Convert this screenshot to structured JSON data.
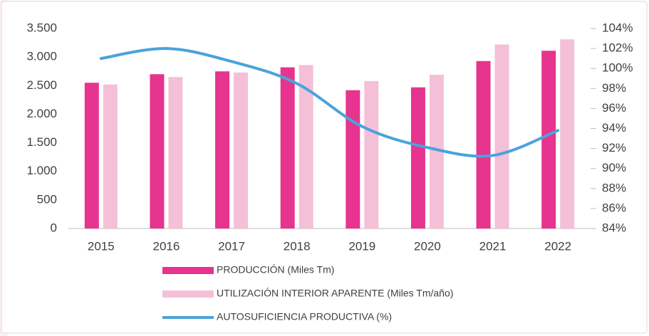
{
  "chart_data": {
    "type": "bar",
    "categories": [
      "2015",
      "2016",
      "2017",
      "2018",
      "2019",
      "2020",
      "2021",
      "2022"
    ],
    "series": [
      {
        "name": "PRODUCCIÓN (Miles Tm)",
        "color": "#e6348f",
        "values": [
          2550,
          2700,
          2750,
          2820,
          2420,
          2470,
          2930,
          3110
        ]
      },
      {
        "name": "UTILIZACIÓN INTERIOR APARENTE (Miles Tm/año)",
        "color": "#f4c0d7",
        "values": [
          2520,
          2650,
          2730,
          2860,
          2580,
          2690,
          3220,
          3310
        ]
      },
      {
        "name": "AUTOSUFICIENCIA PRODUCTIVA (%)",
        "color": "#4aa3db",
        "type": "line",
        "axis": "y2",
        "values": [
          101.0,
          102.0,
          100.7,
          98.5,
          94.2,
          92.1,
          91.3,
          93.8
        ]
      }
    ],
    "ylim": [
      0,
      3500
    ],
    "yticks": [
      0,
      500,
      {
        "value": 1000,
        "label": "1.000"
      },
      {
        "value": 1500,
        "label": "1.500"
      },
      {
        "value": 2000,
        "label": "2.000"
      },
      {
        "value": 2500,
        "label": "2.500"
      },
      {
        "value": 3000,
        "label": "3.000"
      },
      {
        "value": 3500,
        "label": "3.500"
      }
    ],
    "y2lim": [
      84,
      104
    ],
    "y2ticks": [
      {
        "value": 84,
        "label": "84%"
      },
      {
        "value": 86,
        "label": "86%"
      },
      {
        "value": 88,
        "label": "88%"
      },
      {
        "value": 90,
        "label": "90%"
      },
      {
        "value": 92,
        "label": "92%"
      },
      {
        "value": 94,
        "label": "94%"
      },
      {
        "value": 96,
        "label": "96%"
      },
      {
        "value": 98,
        "label": "98%"
      },
      {
        "value": 100,
        "label": "100%"
      },
      {
        "value": 102,
        "label": "102%"
      },
      {
        "value": 104,
        "label": "104%"
      }
    ],
    "grid": false,
    "legend": "bottom"
  }
}
